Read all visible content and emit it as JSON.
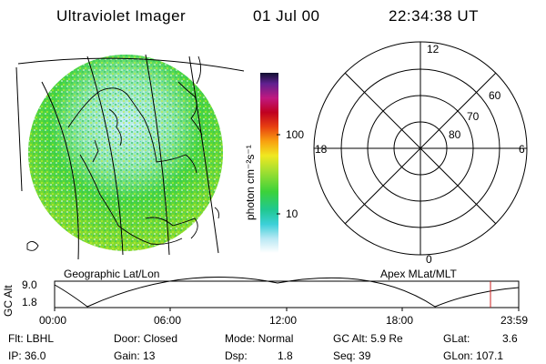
{
  "header": {
    "title": "Ultraviolet Imager",
    "date": "01 Jul 00",
    "time": "22:34:38 UT"
  },
  "geo_panel": {
    "caption": "Geographic Lat/Lon"
  },
  "colorbar": {
    "label": "photon cm⁻²s⁻¹",
    "ticks": [
      "100",
      "10"
    ],
    "scale": "log"
  },
  "polar_panel": {
    "caption": "Apex MLat/MLT",
    "mlt_labels": [
      "12",
      "18",
      "6",
      "0"
    ],
    "lat_labels": [
      "60",
      "70",
      "80"
    ]
  },
  "timeline": {
    "ylabel": "GC Alt",
    "yticks": [
      "9.0",
      "1.8"
    ],
    "xticks": [
      "00:00",
      "06:00",
      "12:00",
      "18:00",
      "23:59"
    ],
    "marker_color": "#cc2222"
  },
  "status": {
    "row1": [
      {
        "text": "Flt: LBHL"
      },
      {
        "text": "Door: Closed"
      },
      {
        "text": "Mode: Normal"
      },
      {
        "text": "GC Alt: 5.9 Re"
      },
      {
        "text": "GLat:"
      },
      {
        "text": "3.6"
      }
    ],
    "row2": [
      {
        "text": "IP: 36.0"
      },
      {
        "text": "Gain: 13"
      },
      {
        "text": "Dsp:"
      },
      {
        "text": "1.8"
      },
      {
        "text": "Seq: 39"
      },
      {
        "text": "GLon: 107.1"
      }
    ]
  },
  "colors": {
    "background": "#ffffff",
    "image_base": "#3fd23a",
    "image_high": "#b5e02a",
    "image_low": "#cfeef0"
  }
}
